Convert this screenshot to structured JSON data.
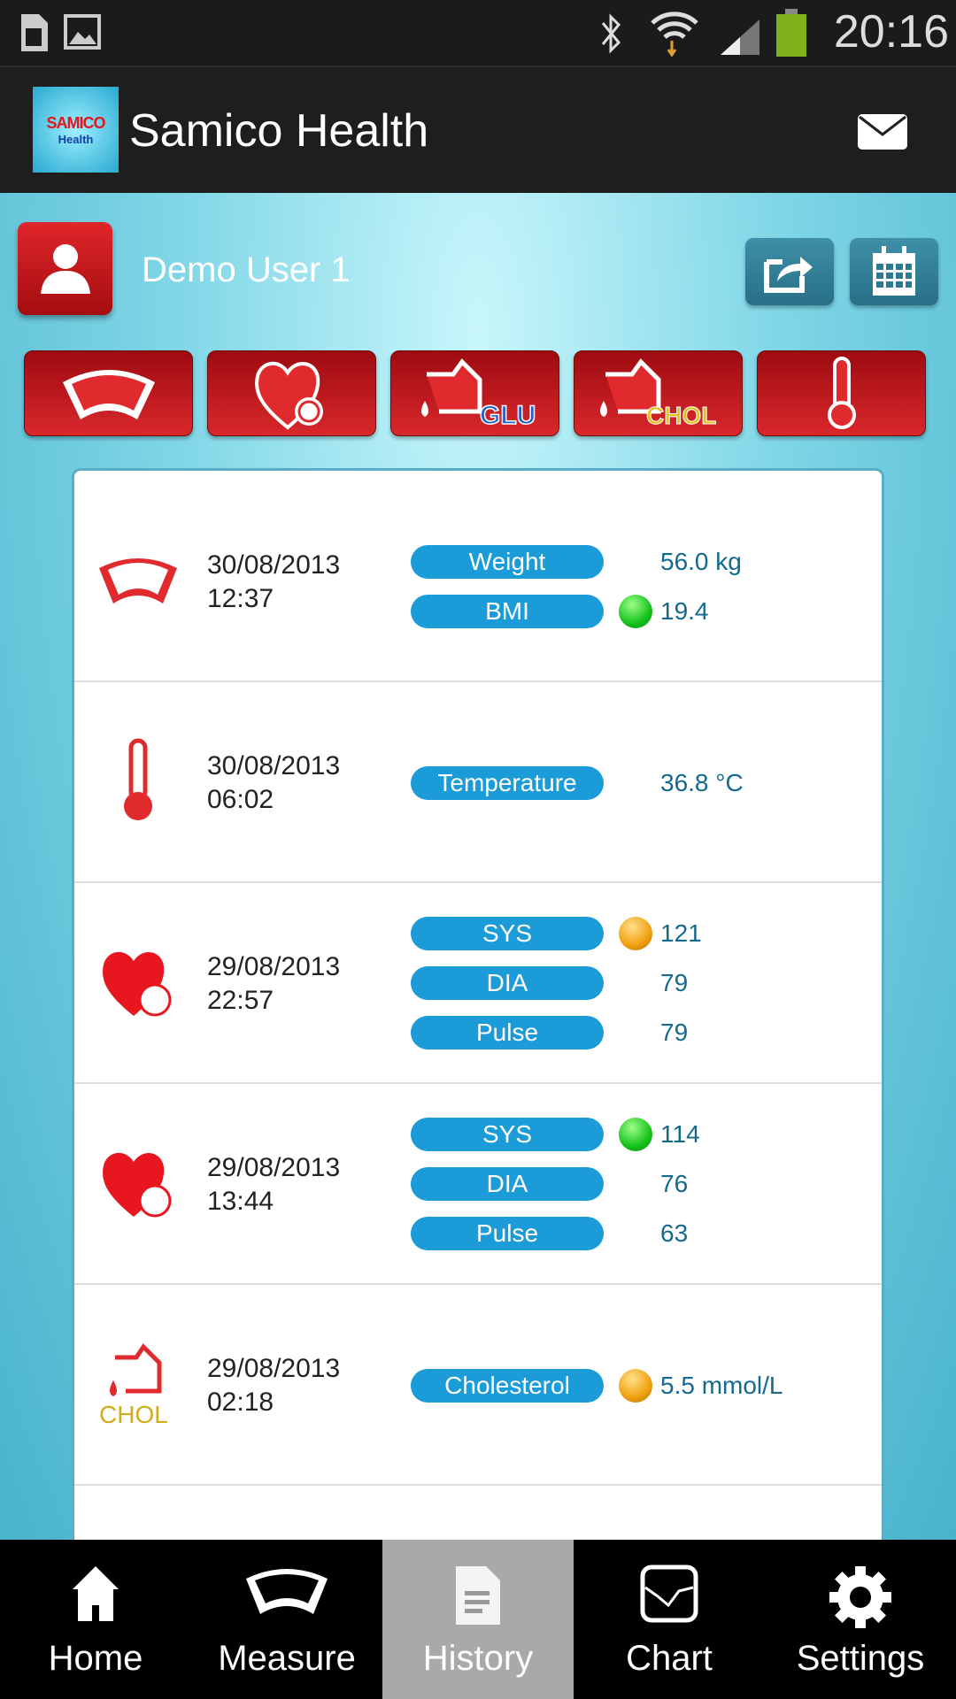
{
  "status_bar": {
    "time": "20:16",
    "icons": [
      "sim-icon",
      "gallery-icon",
      "bluetooth-icon",
      "wifi-icon",
      "signal-icon",
      "battery-icon"
    ]
  },
  "app_bar": {
    "title": "Samico Health",
    "logo_line1": "SAMICO",
    "logo_line2": "Health",
    "mail_icon": "mail-icon"
  },
  "user": {
    "name": "Demo User 1"
  },
  "categories": [
    {
      "name": "weight",
      "badge": ""
    },
    {
      "name": "blood-pressure",
      "badge": ""
    },
    {
      "name": "glucose",
      "badge": "GLU"
    },
    {
      "name": "cholesterol",
      "badge": "CHOL"
    },
    {
      "name": "temperature",
      "badge": ""
    }
  ],
  "colors": {
    "pill": "#1b9bd8",
    "value": "#136a8e",
    "status_green": "#16c21b",
    "status_orange": "#f0a010",
    "accent_red": "#d9282c"
  },
  "history": [
    {
      "type": "weight",
      "date": "30/08/2013",
      "time": "12:37",
      "measures": [
        {
          "label": "Weight",
          "value": "56.0 kg",
          "status": ""
        },
        {
          "label": "BMI",
          "value": "19.4",
          "status": "green"
        }
      ]
    },
    {
      "type": "temperature",
      "date": "30/08/2013",
      "time": "06:02",
      "measures": [
        {
          "label": "Temperature",
          "value": "36.8 °C",
          "status": ""
        }
      ]
    },
    {
      "type": "blood-pressure",
      "date": "29/08/2013",
      "time": "22:57",
      "measures": [
        {
          "label": "SYS",
          "value": "121",
          "status": "orange"
        },
        {
          "label": "DIA",
          "value": "79",
          "status": ""
        },
        {
          "label": "Pulse",
          "value": "79",
          "status": ""
        }
      ]
    },
    {
      "type": "blood-pressure",
      "date": "29/08/2013",
      "time": "13:44",
      "measures": [
        {
          "label": "SYS",
          "value": "114",
          "status": "green"
        },
        {
          "label": "DIA",
          "value": "76",
          "status": ""
        },
        {
          "label": "Pulse",
          "value": "63",
          "status": ""
        }
      ]
    },
    {
      "type": "cholesterol",
      "icon_label": "CHOL",
      "date": "29/08/2013",
      "time": "02:18",
      "measures": [
        {
          "label": "Cholesterol",
          "value": "5.5 mmol/L",
          "status": "orange"
        }
      ]
    }
  ],
  "nav": {
    "active": "History",
    "tabs": [
      {
        "label": "Home"
      },
      {
        "label": "Measure"
      },
      {
        "label": "History"
      },
      {
        "label": "Chart"
      },
      {
        "label": "Settings"
      }
    ]
  }
}
